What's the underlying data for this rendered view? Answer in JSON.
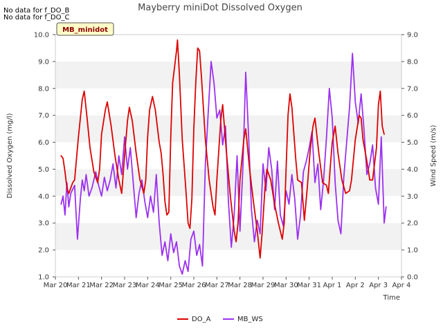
{
  "notes": [
    "No data for f_DO_B",
    "No data for f_DO_C"
  ],
  "site_badge": "MB_minidot",
  "chart_data": {
    "type": "line",
    "title": "Mayberry miniDot Dissolved Oxygen",
    "xlabel": "Time",
    "ylabel": "Dissolved Oxygen (mg/l)",
    "y2label": "Wind Speed (m/s)",
    "x_ticks": [
      "Mar 20",
      "Mar 21",
      "Mar 22",
      "Mar 23",
      "Mar 24",
      "Mar 25",
      "Mar 26",
      "Mar 27",
      "Mar 28",
      "Mar 29",
      "Mar 30",
      "Mar 31",
      "Apr 1",
      "Apr 2",
      "Apr 3",
      "Apr 4"
    ],
    "xlim": [
      "Mar 20",
      "Apr 4"
    ],
    "ylim": [
      1.0,
      10.0
    ],
    "y_ticks": [
      "1.0",
      "2.0",
      "3.0",
      "4.0",
      "5.0",
      "6.0",
      "7.0",
      "8.0",
      "9.0",
      "10.0"
    ],
    "y2lim": [
      0.0,
      9.0
    ],
    "y2_ticks": [
      "0.0",
      "1.0",
      "2.0",
      "3.0",
      "4.0",
      "5.0",
      "6.0",
      "7.0",
      "8.0",
      "9.0"
    ],
    "grid": "horizontal bands",
    "legend_position": "bottom-center",
    "series": [
      {
        "name": "DO_A",
        "axis": "left",
        "color": "#dd0000",
        "points": [
          [
            "Mar 20 06:00",
            5.5
          ],
          [
            "Mar 20 08:00",
            5.4
          ],
          [
            "Mar 20 10:00",
            4.9
          ],
          [
            "Mar 20 12:00",
            4.3
          ],
          [
            "Mar 20 14:00",
            4.1
          ],
          [
            "Mar 20 18:00",
            4.5
          ],
          [
            "Mar 20 20:00",
            4.6
          ],
          [
            "Mar 21 00:00",
            6.2
          ],
          [
            "Mar 21 04:00",
            7.6
          ],
          [
            "Mar 21 06:00",
            7.9
          ],
          [
            "Mar 21 09:00",
            6.9
          ],
          [
            "Mar 21 12:00",
            5.8
          ],
          [
            "Mar 21 16:00",
            4.9
          ],
          [
            "Mar 21 20:00",
            4.5
          ],
          [
            "Mar 21 22:00",
            5.0
          ],
          [
            "Mar 22 00:00",
            6.3
          ],
          [
            "Mar 22 04:00",
            7.2
          ],
          [
            "Mar 22 06:00",
            7.5
          ],
          [
            "Mar 22 10:00",
            6.6
          ],
          [
            "Mar 22 14:00",
            5.5
          ],
          [
            "Mar 22 18:00",
            4.6
          ],
          [
            "Mar 22 21:00",
            4.1
          ],
          [
            "Mar 23 00:00",
            5.5
          ],
          [
            "Mar 23 03:00",
            6.8
          ],
          [
            "Mar 23 05:00",
            7.3
          ],
          [
            "Mar 23 08:00",
            6.8
          ],
          [
            "Mar 23 12:00",
            5.6
          ],
          [
            "Mar 23 16:00",
            4.6
          ],
          [
            "Mar 23 20:00",
            4.1
          ],
          [
            "Mar 23 22:00",
            4.6
          ],
          [
            "Mar 24 00:00",
            6.2
          ],
          [
            "Mar 24 02:00",
            7.2
          ],
          [
            "Mar 24 05:00",
            7.7
          ],
          [
            "Mar 24 08:00",
            7.2
          ],
          [
            "Mar 24 12:00",
            6.0
          ],
          [
            "Mar 24 14:00",
            5.6
          ],
          [
            "Mar 24 16:00",
            4.8
          ],
          [
            "Mar 24 18:00",
            3.8
          ],
          [
            "Mar 24 20:00",
            3.3
          ],
          [
            "Mar 24 22:00",
            3.4
          ],
          [
            "Mar 25 00:00",
            6.2
          ],
          [
            "Mar 25 02:00",
            8.2
          ],
          [
            "Mar 25 04:00",
            8.8
          ],
          [
            "Mar 25 06:00",
            9.4
          ],
          [
            "Mar 25 07:00",
            9.8
          ],
          [
            "Mar 25 09:00",
            8.5
          ],
          [
            "Mar 25 12:00",
            6.1
          ],
          [
            "Mar 25 16:00",
            4.1
          ],
          [
            "Mar 25 18:00",
            3.0
          ],
          [
            "Mar 25 20:00",
            2.8
          ],
          [
            "Mar 25 22:00",
            3.9
          ],
          [
            "Mar 26 00:00",
            6.5
          ],
          [
            "Mar 26 02:00",
            8.2
          ],
          [
            "Mar 26 04:00",
            9.5
          ],
          [
            "Mar 26 06:00",
            9.4
          ],
          [
            "Mar 26 08:00",
            8.4
          ],
          [
            "Mar 26 12:00",
            6.1
          ],
          [
            "Mar 26 16:00",
            4.6
          ],
          [
            "Mar 26 20:00",
            3.6
          ],
          [
            "Mar 26 22:00",
            3.3
          ],
          [
            "Mar 27 00:00",
            4.6
          ],
          [
            "Mar 27 04:00",
            6.8
          ],
          [
            "Mar 27 06:00",
            7.4
          ],
          [
            "Mar 27 10:00",
            5.6
          ],
          [
            "Mar 27 14:00",
            4.0
          ],
          [
            "Mar 27 18:00",
            2.7
          ],
          [
            "Mar 27 20:00",
            2.3
          ],
          [
            "Mar 27 22:00",
            3.0
          ],
          [
            "Mar 28 00:00",
            4.6
          ],
          [
            "Mar 28 04:00",
            6.1
          ],
          [
            "Mar 28 06:00",
            6.5
          ],
          [
            "Mar 28 10:00",
            5.0
          ],
          [
            "Mar 28 14:00",
            3.8
          ],
          [
            "Mar 28 18:00",
            2.7
          ],
          [
            "Mar 28 21:00",
            1.7
          ],
          [
            "Mar 28 23:00",
            2.6
          ],
          [
            "Mar 29 02:00",
            4.3
          ],
          [
            "Mar 29 04:00",
            5.0
          ],
          [
            "Mar 29 08:00",
            4.6
          ],
          [
            "Mar 29 12:00",
            3.7
          ],
          [
            "Mar 29 16:00",
            3.0
          ],
          [
            "Mar 29 20:00",
            2.4
          ],
          [
            "Mar 29 22:00",
            3.0
          ],
          [
            "Mar 30 00:00",
            5.0
          ],
          [
            "Mar 30 02:00",
            7.0
          ],
          [
            "Mar 30 04:00",
            7.8
          ],
          [
            "Mar 30 06:00",
            7.3
          ],
          [
            "Mar 30 10:00",
            5.4
          ],
          [
            "Mar 30 12:00",
            4.6
          ],
          [
            "Mar 30 16:00",
            4.5
          ],
          [
            "Mar 30 19:00",
            3.1
          ],
          [
            "Mar 30 22:00",
            4.3
          ],
          [
            "Mar 31 01:00",
            5.7
          ],
          [
            "Mar 31 04:00",
            6.6
          ],
          [
            "Mar 31 06:00",
            6.9
          ],
          [
            "Mar 31 10:00",
            5.6
          ],
          [
            "Mar 31 14:00",
            4.5
          ],
          [
            "Mar 31 18:00",
            4.4
          ],
          [
            "Mar 31 20:00",
            4.1
          ],
          [
            "Mar 31 22:00",
            5.1
          ],
          [
            "Apr 1 00:00",
            6.0
          ],
          [
            "Apr 1 03:00",
            6.6
          ],
          [
            "Apr 1 06:00",
            5.6
          ],
          [
            "Apr 1 10:00",
            4.6
          ],
          [
            "Apr 1 14:00",
            4.1
          ],
          [
            "Apr 1 18:00",
            4.2
          ],
          [
            "Apr 1 20:00",
            4.6
          ],
          [
            "Apr 2 00:00",
            6.1
          ],
          [
            "Apr 2 04:00",
            7.0
          ],
          [
            "Apr 2 06:00",
            6.9
          ],
          [
            "Apr 2 08:00",
            6.1
          ],
          [
            "Apr 2 12:00",
            5.3
          ],
          [
            "Apr 2 15:00",
            4.6
          ],
          [
            "Apr 2 18:00",
            4.6
          ],
          [
            "Apr 2 22:00",
            5.8
          ],
          [
            "Apr 3 00:00",
            7.4
          ],
          [
            "Apr 3 02:00",
            7.9
          ],
          [
            "Apr 3 04:00",
            6.6
          ],
          [
            "Apr 3 06:00",
            6.3
          ]
        ]
      },
      {
        "name": "MB_WS",
        "axis": "right",
        "color": "#9b30f0",
        "points": [
          [
            "Mar 20 06:00",
            2.7
          ],
          [
            "Mar 20 08:00",
            3.0
          ],
          [
            "Mar 20 10:00",
            2.3
          ],
          [
            "Mar 20 12:00",
            3.5
          ],
          [
            "Mar 20 14:00",
            2.6
          ],
          [
            "Mar 20 16:00",
            3.1
          ],
          [
            "Mar 20 20:00",
            3.4
          ],
          [
            "Mar 20 23:00",
            1.4
          ],
          [
            "Mar 21 02:00",
            2.9
          ],
          [
            "Mar 21 04:00",
            3.6
          ],
          [
            "Mar 21 06:00",
            3.2
          ],
          [
            "Mar 21 08:00",
            3.8
          ],
          [
            "Mar 21 11:00",
            3.0
          ],
          [
            "Mar 21 14:00",
            3.3
          ],
          [
            "Mar 21 18:00",
            3.9
          ],
          [
            "Mar 21 21:00",
            3.4
          ],
          [
            "Mar 22 00:00",
            3.0
          ],
          [
            "Mar 22 03:00",
            3.7
          ],
          [
            "Mar 22 06:00",
            3.2
          ],
          [
            "Mar 22 09:00",
            3.6
          ],
          [
            "Mar 22 12:00",
            4.2
          ],
          [
            "Mar 22 15:00",
            3.3
          ],
          [
            "Mar 22 18:00",
            4.5
          ],
          [
            "Mar 22 21:00",
            3.8
          ],
          [
            "Mar 23 00:00",
            5.2
          ],
          [
            "Mar 23 03:00",
            4.0
          ],
          [
            "Mar 23 06:00",
            4.8
          ],
          [
            "Mar 23 09:00",
            3.5
          ],
          [
            "Mar 23 12:00",
            2.2
          ],
          [
            "Mar 23 15:00",
            3.1
          ],
          [
            "Mar 23 18:00",
            3.6
          ],
          [
            "Mar 23 21:00",
            2.8
          ],
          [
            "Mar 24 00:00",
            2.2
          ],
          [
            "Mar 24 03:00",
            3.0
          ],
          [
            "Mar 24 06:00",
            2.4
          ],
          [
            "Mar 24 09:00",
            3.8
          ],
          [
            "Mar 24 12:00",
            2.0
          ],
          [
            "Mar 24 15:00",
            0.8
          ],
          [
            "Mar 24 18:00",
            1.3
          ],
          [
            "Mar 24 21:00",
            0.6
          ],
          [
            "Mar 25 00:00",
            1.6
          ],
          [
            "Mar 25 03:00",
            0.9
          ],
          [
            "Mar 25 06:00",
            1.3
          ],
          [
            "Mar 25 09:00",
            0.4
          ],
          [
            "Mar 25 12:00",
            0.1
          ],
          [
            "Mar 25 15:00",
            0.6
          ],
          [
            "Mar 25 18:00",
            0.2
          ],
          [
            "Mar 25 21:00",
            1.4
          ],
          [
            "Mar 26 00:00",
            1.7
          ],
          [
            "Mar 26 03:00",
            0.8
          ],
          [
            "Mar 26 06:00",
            1.2
          ],
          [
            "Mar 26 09:00",
            0.4
          ],
          [
            "Mar 26 12:00",
            4.2
          ],
          [
            "Mar 26 15:00",
            6.1
          ],
          [
            "Mar 26 18:00",
            8.0
          ],
          [
            "Mar 26 21:00",
            7.2
          ],
          [
            "Mar 27 00:00",
            5.9
          ],
          [
            "Mar 27 03:00",
            6.2
          ],
          [
            "Mar 27 06:00",
            4.9
          ],
          [
            "Mar 27 09:00",
            5.6
          ],
          [
            "Mar 27 12:00",
            2.8
          ],
          [
            "Mar 27 15:00",
            1.1
          ],
          [
            "Mar 27 18:00",
            2.3
          ],
          [
            "Mar 27 21:00",
            4.5
          ],
          [
            "Mar 28 00:00",
            1.7
          ],
          [
            "Mar 28 03:00",
            4.0
          ],
          [
            "Mar 28 06:00",
            7.6
          ],
          [
            "Mar 28 09:00",
            5.2
          ],
          [
            "Mar 28 12:00",
            2.5
          ],
          [
            "Mar 28 15:00",
            1.3
          ],
          [
            "Mar 28 18:00",
            2.1
          ],
          [
            "Mar 28 21:00",
            1.6
          ],
          [
            "Mar 29 00:00",
            4.2
          ],
          [
            "Mar 29 03:00",
            3.2
          ],
          [
            "Mar 29 06:00",
            4.8
          ],
          [
            "Mar 29 09:00",
            4.0
          ],
          [
            "Mar 29 12:00",
            2.5
          ],
          [
            "Mar 29 15:00",
            4.3
          ],
          [
            "Mar 29 18:00",
            2.3
          ],
          [
            "Mar 29 21:00",
            1.9
          ],
          [
            "Mar 30 00:00",
            3.2
          ],
          [
            "Mar 30 03:00",
            2.7
          ],
          [
            "Mar 30 06:00",
            3.8
          ],
          [
            "Mar 30 09:00",
            2.9
          ],
          [
            "Mar 30 12:00",
            1.4
          ],
          [
            "Mar 30 15:00",
            2.3
          ],
          [
            "Mar 30 18:00",
            3.9
          ],
          [
            "Mar 30 21:00",
            4.3
          ],
          [
            "Mar 31 00:00",
            4.8
          ],
          [
            "Mar 31 03:00",
            5.4
          ],
          [
            "Mar 31 06:00",
            3.5
          ],
          [
            "Mar 31 09:00",
            4.2
          ],
          [
            "Mar 31 12:00",
            2.5
          ],
          [
            "Mar 31 15:00",
            3.6
          ],
          [
            "Mar 31 18:00",
            5.2
          ],
          [
            "Mar 31 21:00",
            7.0
          ],
          [
            "Apr 1 00:00",
            5.9
          ],
          [
            "Apr 1 03:00",
            3.5
          ],
          [
            "Apr 1 06:00",
            2.1
          ],
          [
            "Apr 1 09:00",
            1.6
          ],
          [
            "Apr 1 12:00",
            3.7
          ],
          [
            "Apr 1 15:00",
            5.0
          ],
          [
            "Apr 1 18:00",
            6.3
          ],
          [
            "Apr 1 21:00",
            8.3
          ],
          [
            "Apr 2 00:00",
            6.5
          ],
          [
            "Apr 2 03:00",
            5.7
          ],
          [
            "Apr 2 06:00",
            6.8
          ],
          [
            "Apr 2 09:00",
            5.5
          ],
          [
            "Apr 2 12:00",
            3.8
          ],
          [
            "Apr 2 15:00",
            4.2
          ],
          [
            "Apr 2 18:00",
            4.9
          ],
          [
            "Apr 2 21:00",
            3.3
          ],
          [
            "Apr 3 00:00",
            2.7
          ],
          [
            "Apr 3 03:00",
            5.2
          ],
          [
            "Apr 3 06:00",
            2.0
          ],
          [
            "Apr 3 08:00",
            2.6
          ]
        ]
      }
    ]
  }
}
